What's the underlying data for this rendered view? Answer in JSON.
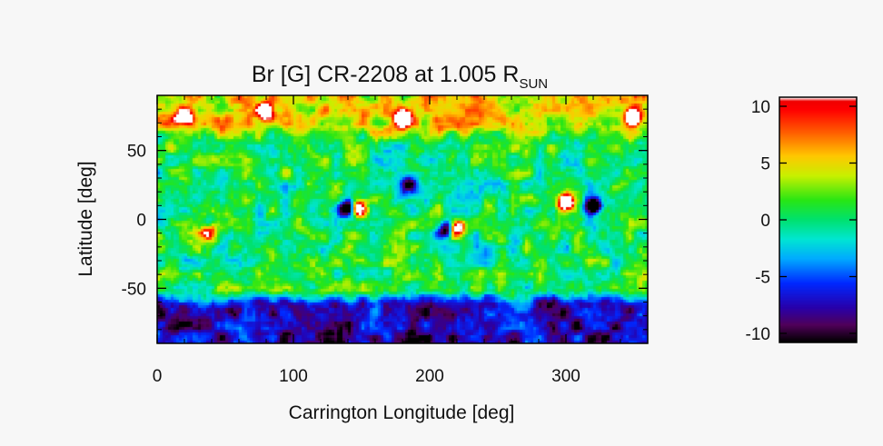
{
  "chart_data": [
    {
      "type": "heatmap",
      "title": {
        "main": "Br [G] CR-2208 at 1.005 R",
        "subscript": "SUN"
      },
      "xlabel": "Carrington Longitude [deg]",
      "ylabel": "Latitude [deg]",
      "xlim": [
        0,
        360
      ],
      "ylim": [
        -90,
        90
      ],
      "xticks": [
        0,
        100,
        200,
        300
      ],
      "yticks": [
        50,
        0,
        -50
      ],
      "zlim": [
        -10,
        10
      ],
      "zscale_unit": "G",
      "grid": false,
      "features": [
        {
          "lon": 140,
          "lat": 8,
          "value": -10
        },
        {
          "lon": 147,
          "lat": 8,
          "value": 10
        },
        {
          "lon": 213,
          "lat": -7,
          "value": -10
        },
        {
          "lon": 219,
          "lat": -7,
          "value": 10
        },
        {
          "lon": 300,
          "lat": 12,
          "value": 10
        },
        {
          "lon": 320,
          "lat": 10,
          "value": -10
        },
        {
          "lon": 185,
          "lat": 25,
          "value": -7
        },
        {
          "lon": 38,
          "lat": -10,
          "value": 7
        },
        {
          "lon": 20,
          "lat": 75,
          "value": 10
        },
        {
          "lon": 80,
          "lat": 78,
          "value": 9
        },
        {
          "lon": 180,
          "lat": 73,
          "value": 9
        },
        {
          "lon": 350,
          "lat": 75,
          "value": 10
        }
      ]
    },
    {
      "type": "colorbar",
      "zlim": [
        -10,
        10
      ],
      "ticks": [
        10,
        5,
        0,
        -5,
        -10
      ],
      "tick_labels": [
        "10",
        "5",
        "0",
        "-5",
        "-10"
      ],
      "colormap": "rainbow (black-purple-blue-cyan-green-yellow-orange-red-white)"
    }
  ]
}
